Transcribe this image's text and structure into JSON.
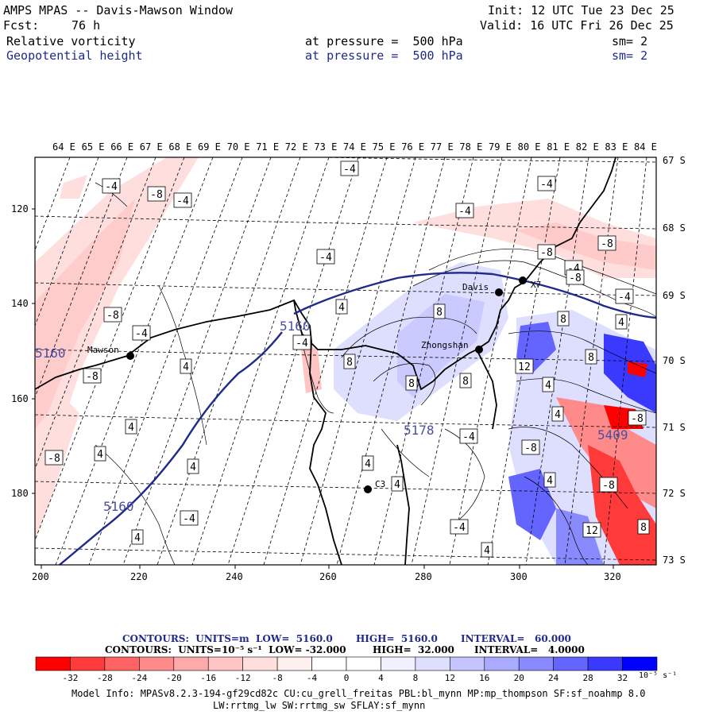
{
  "header": {
    "title": "AMPS MPAS -- Davis-Mawson Window",
    "init": "Init: 12 UTC Tue 23 Dec 25",
    "fcst_label": "Fcst:",
    "fcst_value": "76 h",
    "valid": "Valid: 16 UTC Fri 26 Dec 25",
    "field1": {
      "name": "Relative vorticity",
      "level": "at pressure =  500 hPa",
      "sm": "sm= 2"
    },
    "field2": {
      "name": "Geopotential height",
      "level": "at pressure =  500 hPa",
      "sm": "sm= 2"
    }
  },
  "map": {
    "lon_labels": [
      "64 E",
      "65 E",
      "66 E",
      "67 E",
      "68 E",
      "69 E",
      "70 E",
      "71 E",
      "72 E",
      "73 E",
      "74 E",
      "75 E",
      "76 E",
      "77 E",
      "78 E",
      "79 E",
      "80 E",
      "81 E",
      "82 E",
      "83 E",
      "84 E"
    ],
    "lat_labels": [
      "67 S",
      "68 S",
      "69 S",
      "70 S",
      "71 S",
      "72 S",
      "73 S"
    ],
    "x_ticks": [
      "200",
      "220",
      "240",
      "260",
      "280",
      "300",
      "320"
    ],
    "y_ticks": [
      "120",
      "140",
      "160",
      "180"
    ],
    "stations": [
      "Mawson",
      "Davis",
      "Zhongshan",
      "C3",
      "X7"
    ],
    "height_labels": [
      "5160",
      "5160",
      "5178",
      "5409",
      "5160"
    ],
    "contour_labels": [
      "-4",
      "-4",
      "-8",
      "-4",
      "-4",
      "-4",
      "-4",
      "-8",
      "-4",
      "-4",
      "8",
      "8",
      "8",
      "8",
      "-8",
      "4",
      "4",
      "4",
      "4",
      "4",
      "4",
      "4",
      "4",
      "4",
      "-8",
      "-8",
      "-4",
      "-4",
      "-8",
      "-8",
      "8",
      "8",
      "12",
      "-4",
      "-4",
      "-8",
      "4",
      "4",
      "-8",
      "-8",
      "12",
      "4",
      "-4",
      "4",
      "8"
    ]
  },
  "legend": {
    "contours1": "CONTOURS:  UNITS=m  LOW=  5160.0       HIGH=  5160.0       INTERVAL=   60.000",
    "contours2": "CONTOURS:  UNITS=10⁻⁵ s⁻¹  LOW= -32.000        HIGH=  32.000      INTERVAL=   4.0000",
    "colorbar_ticks": [
      "-32",
      "-28",
      "-24",
      "-20",
      "-16",
      "-12",
      "-8",
      "-4",
      "0",
      "4",
      "8",
      "12",
      "16",
      "20",
      "24",
      "28",
      "32"
    ],
    "colorbar_unit": "10⁻⁵ s⁻¹",
    "colors": [
      "#ff0000",
      "#ff3a3a",
      "#ff6464",
      "#ff8a8a",
      "#ffaaaa",
      "#ffc4c4",
      "#ffdede",
      "#fff0f0",
      "#ffffff",
      "#ffffff",
      "#f0f0ff",
      "#dedeff",
      "#c4c4ff",
      "#aaaaff",
      "#8a8aff",
      "#6464ff",
      "#3a3aff",
      "#0000ff"
    ]
  },
  "footer": {
    "line1": "Model Info: MPASv8.2.3-194-gf29cd82c CU:cu_grell_freitas PBL:bl_mynn MP:mp_thompson SF:sf_noahmp 8.0",
    "line2": "LW:rrtmg_lw SW:rrtmg_sw SFLAY:sf_mynn"
  }
}
